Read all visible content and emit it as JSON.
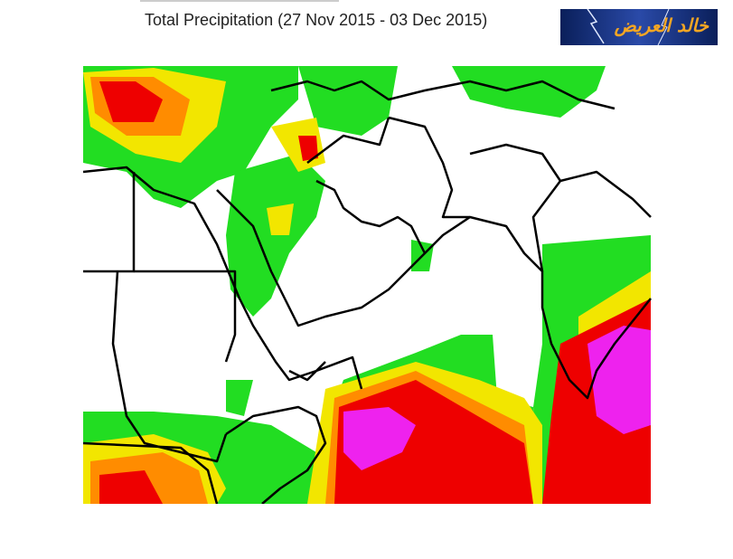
{
  "header": {
    "title": "Total Precipitation (27 Nov 2015 - 03 Dec 2015)"
  },
  "logo": {
    "text": "خالد العريض"
  }
}
